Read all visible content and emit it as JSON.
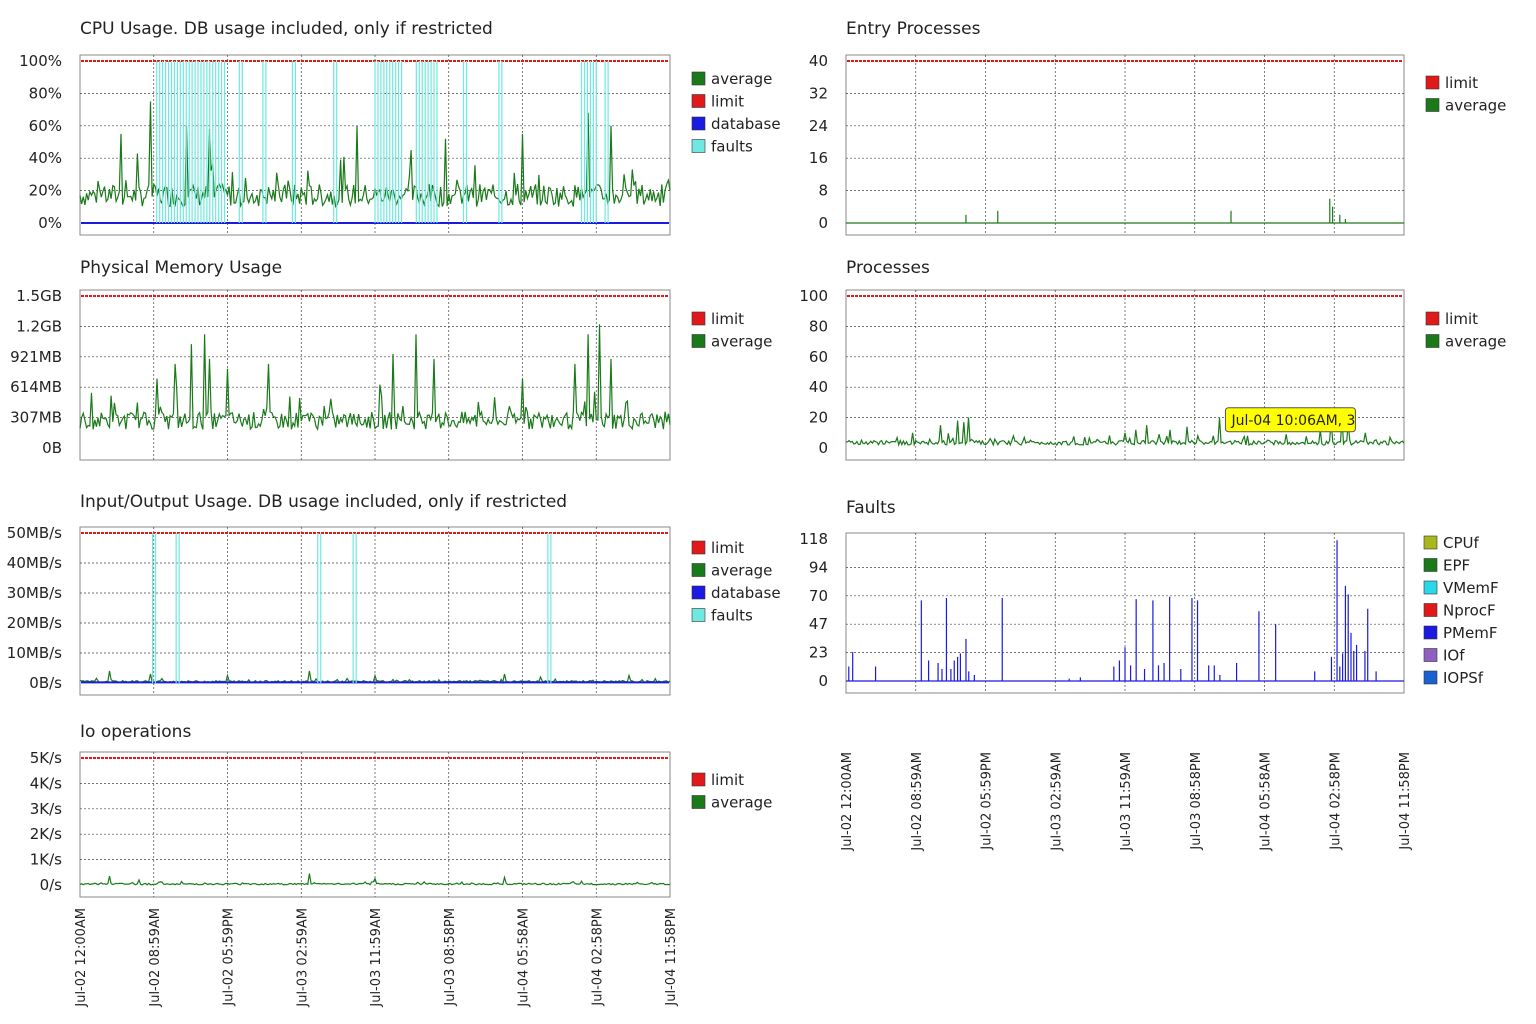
{
  "x_axis": {
    "labels": [
      "Jul-02 12:00AM",
      "Jul-02 08:59AM",
      "Jul-02 05:59PM",
      "Jul-03 02:59AM",
      "Jul-03 11:59AM",
      "Jul-03 08:58PM",
      "Jul-04 05:58AM",
      "Jul-04 02:58PM",
      "Jul-04 11:58PM"
    ]
  },
  "colors": {
    "average": "#1a7a1a",
    "limit": "#e01a1a",
    "database": "#1a1ae0",
    "faults": "#6ee8e0",
    "CPUf": "#a8b81a",
    "EPF": "#1a7a1a",
    "VMemF": "#2ad8e8",
    "NprocF": "#e01a1a",
    "PMemF": "#1a1ae0",
    "IOf": "#9060c0",
    "IOPSf": "#1a60d0"
  },
  "chart_data": [
    {
      "id": "cpu",
      "type": "line",
      "title": "CPU Usage. DB usage included, only if restricted",
      "y_ticks": [
        "100%",
        "80%",
        "60%",
        "40%",
        "20%",
        "0%"
      ],
      "ylim": [
        0,
        100
      ],
      "legend": [
        "average",
        "limit",
        "database",
        "faults"
      ],
      "series": [
        {
          "name": "average",
          "baseline": 15,
          "noise": 14,
          "spikes": [
            [
              0.07,
              55
            ],
            [
              0.12,
              75
            ],
            [
              0.18,
              60
            ],
            [
              0.22,
              58
            ],
            [
              0.47,
              60
            ],
            [
              0.56,
              45
            ],
            [
              0.62,
              52
            ],
            [
              0.75,
              55
            ],
            [
              0.86,
              68
            ],
            [
              0.9,
              60
            ]
          ]
        },
        {
          "name": "limit",
          "constant": 100
        },
        {
          "name": "database",
          "constant": 0
        },
        {
          "name": "faults",
          "spikes": [
            [
              0.13,
              100
            ],
            [
              0.14,
              100
            ],
            [
              0.15,
              100
            ],
            [
              0.16,
              100
            ],
            [
              0.17,
              100
            ],
            [
              0.18,
              100
            ],
            [
              0.19,
              100
            ],
            [
              0.2,
              100
            ],
            [
              0.21,
              100
            ],
            [
              0.22,
              100
            ],
            [
              0.23,
              100
            ],
            [
              0.24,
              100
            ],
            [
              0.27,
              100
            ],
            [
              0.31,
              100
            ],
            [
              0.36,
              100
            ],
            [
              0.43,
              100
            ],
            [
              0.5,
              100
            ],
            [
              0.51,
              100
            ],
            [
              0.52,
              100
            ],
            [
              0.53,
              100
            ],
            [
              0.54,
              100
            ],
            [
              0.57,
              100
            ],
            [
              0.58,
              100
            ],
            [
              0.59,
              100
            ],
            [
              0.6,
              100
            ],
            [
              0.65,
              100
            ],
            [
              0.71,
              100
            ],
            [
              0.85,
              100
            ],
            [
              0.86,
              100
            ],
            [
              0.87,
              100
            ],
            [
              0.89,
              100
            ]
          ]
        }
      ]
    },
    {
      "id": "mem",
      "type": "line",
      "title": "Physical Memory Usage",
      "y_ticks": [
        "1.5GB",
        "1.2GB",
        "921MB",
        "614MB",
        "307MB",
        "0B"
      ],
      "ylim": [
        0,
        1536
      ],
      "legend": [
        "limit",
        "average"
      ],
      "series": [
        {
          "name": "average",
          "baseline": 250,
          "noise": 180,
          "spikes": [
            [
              0.13,
              700
            ],
            [
              0.16,
              850
            ],
            [
              0.19,
              1050
            ],
            [
              0.21,
              1150
            ],
            [
              0.22,
              900
            ],
            [
              0.25,
              800
            ],
            [
              0.32,
              850
            ],
            [
              0.53,
              950
            ],
            [
              0.57,
              1150
            ],
            [
              0.6,
              900
            ],
            [
              0.75,
              700
            ],
            [
              0.84,
              850
            ],
            [
              0.86,
              1150
            ],
            [
              0.88,
              1250
            ],
            [
              0.9,
              900
            ]
          ]
        },
        {
          "name": "limit",
          "constant": 1536
        }
      ]
    },
    {
      "id": "io",
      "type": "line",
      "title": "Input/Output Usage. DB usage included, only if restricted",
      "y_ticks": [
        "50MB/s",
        "40MB/s",
        "30MB/s",
        "20MB/s",
        "10MB/s",
        "0B/s"
      ],
      "ylim": [
        0,
        50
      ],
      "legend": [
        "limit",
        "average",
        "database",
        "faults"
      ],
      "series": [
        {
          "name": "average",
          "baseline": 0.4,
          "noise": 0.6,
          "spikes": [
            [
              0.05,
              4
            ],
            [
              0.12,
              3
            ],
            [
              0.25,
              2.5
            ],
            [
              0.39,
              4
            ],
            [
              0.5,
              2.5
            ],
            [
              0.72,
              3
            ],
            [
              0.78,
              2
            ],
            [
              0.93,
              2.5
            ]
          ]
        },
        {
          "name": "limit",
          "constant": 50
        },
        {
          "name": "database",
          "constant": 0.2
        },
        {
          "name": "faults",
          "spikes": [
            [
              0.123,
              50
            ],
            [
              0.163,
              50
            ],
            [
              0.403,
              50
            ],
            [
              0.463,
              50
            ],
            [
              0.793,
              50
            ]
          ]
        }
      ]
    },
    {
      "id": "iops",
      "type": "line",
      "title": "Io operations",
      "y_ticks": [
        "5K/s",
        "4K/s",
        "3K/s",
        "2K/s",
        "1K/s",
        "0/s"
      ],
      "ylim": [
        0,
        5000
      ],
      "legend": [
        "limit",
        "average"
      ],
      "series": [
        {
          "name": "average",
          "baseline": 30,
          "noise": 60,
          "spikes": [
            [
              0.05,
              350
            ],
            [
              0.1,
              200
            ],
            [
              0.39,
              450
            ],
            [
              0.5,
              250
            ],
            [
              0.72,
              300
            ],
            [
              0.85,
              150
            ]
          ]
        },
        {
          "name": "limit",
          "constant": 5000
        }
      ]
    },
    {
      "id": "ep",
      "type": "line",
      "title": "Entry Processes",
      "y_ticks": [
        "40",
        "32",
        "24",
        "16",
        "8",
        "0"
      ],
      "ylim": [
        0,
        40
      ],
      "legend": [
        "limit",
        "average"
      ],
      "series": [
        {
          "name": "average",
          "baseline": 0,
          "noise": 0,
          "spikes": [
            [
              0.215,
              2
            ],
            [
              0.272,
              3
            ],
            [
              0.69,
              3
            ],
            [
              0.867,
              6
            ],
            [
              0.872,
              4
            ],
            [
              0.885,
              2
            ],
            [
              0.895,
              1
            ]
          ]
        },
        {
          "name": "limit",
          "constant": 40
        }
      ]
    },
    {
      "id": "proc",
      "type": "line",
      "title": "Processes",
      "y_ticks": [
        "100",
        "80",
        "60",
        "40",
        "20",
        "0"
      ],
      "ylim": [
        0,
        100
      ],
      "legend": [
        "limit",
        "average"
      ],
      "tooltip": {
        "text": "Jul-04 10:06AM, 3"
      },
      "series": [
        {
          "name": "average",
          "baseline": 3,
          "noise": 3,
          "spikes": [
            [
              0.12,
              10
            ],
            [
              0.17,
              15
            ],
            [
              0.2,
              18
            ],
            [
              0.21,
              17
            ],
            [
              0.22,
              20
            ],
            [
              0.3,
              8
            ],
            [
              0.5,
              10
            ],
            [
              0.52,
              12
            ],
            [
              0.54,
              15
            ],
            [
              0.56,
              9
            ],
            [
              0.58,
              12
            ],
            [
              0.61,
              14
            ],
            [
              0.63,
              8
            ],
            [
              0.67,
              20
            ],
            [
              0.72,
              8
            ],
            [
              0.79,
              9
            ],
            [
              0.85,
              12
            ],
            [
              0.87,
              18
            ],
            [
              0.89,
              20
            ],
            [
              0.9,
              16
            ],
            [
              0.93,
              10
            ]
          ]
        },
        {
          "name": "limit",
          "constant": 100
        }
      ]
    },
    {
      "id": "faults",
      "type": "line",
      "title": "Faults",
      "y_ticks": [
        "118",
        "94",
        "70",
        "47",
        "23",
        "0"
      ],
      "ylim": [
        0,
        118
      ],
      "legend": [
        "CPUf",
        "EPF",
        "VMemF",
        "NprocF",
        "PMemF",
        "IOf",
        "IOPSf"
      ],
      "series": [
        {
          "name": "PMemF",
          "baseline": 0,
          "noise": 0,
          "spikes": [
            [
              0.005,
              12
            ],
            [
              0.012,
              24
            ],
            [
              0.053,
              12
            ],
            [
              0.135,
              67
            ],
            [
              0.148,
              17
            ],
            [
              0.165,
              15
            ],
            [
              0.172,
              10
            ],
            [
              0.18,
              69
            ],
            [
              0.188,
              10
            ],
            [
              0.194,
              17
            ],
            [
              0.2,
              20
            ],
            [
              0.205,
              23
            ],
            [
              0.215,
              35
            ],
            [
              0.22,
              8
            ],
            [
              0.23,
              5
            ],
            [
              0.28,
              69
            ],
            [
              0.4,
              2
            ],
            [
              0.42,
              3
            ],
            [
              0.48,
              12
            ],
            [
              0.49,
              17
            ],
            [
              0.5,
              28
            ],
            [
              0.51,
              13
            ],
            [
              0.52,
              68
            ],
            [
              0.535,
              10
            ],
            [
              0.55,
              67
            ],
            [
              0.56,
              13
            ],
            [
              0.57,
              15
            ],
            [
              0.58,
              70
            ],
            [
              0.6,
              10
            ],
            [
              0.62,
              69
            ],
            [
              0.63,
              67
            ],
            [
              0.65,
              13
            ],
            [
              0.66,
              13
            ],
            [
              0.67,
              5
            ],
            [
              0.7,
              15
            ],
            [
              0.74,
              58
            ],
            [
              0.77,
              47
            ],
            [
              0.84,
              8
            ],
            [
              0.87,
              20
            ],
            [
              0.88,
              117
            ],
            [
              0.885,
              12
            ],
            [
              0.89,
              23
            ],
            [
              0.895,
              79
            ],
            [
              0.9,
              72
            ],
            [
              0.905,
              40
            ],
            [
              0.91,
              25
            ],
            [
              0.915,
              30
            ],
            [
              0.93,
              25
            ],
            [
              0.935,
              60
            ],
            [
              0.95,
              8
            ]
          ]
        }
      ]
    }
  ]
}
